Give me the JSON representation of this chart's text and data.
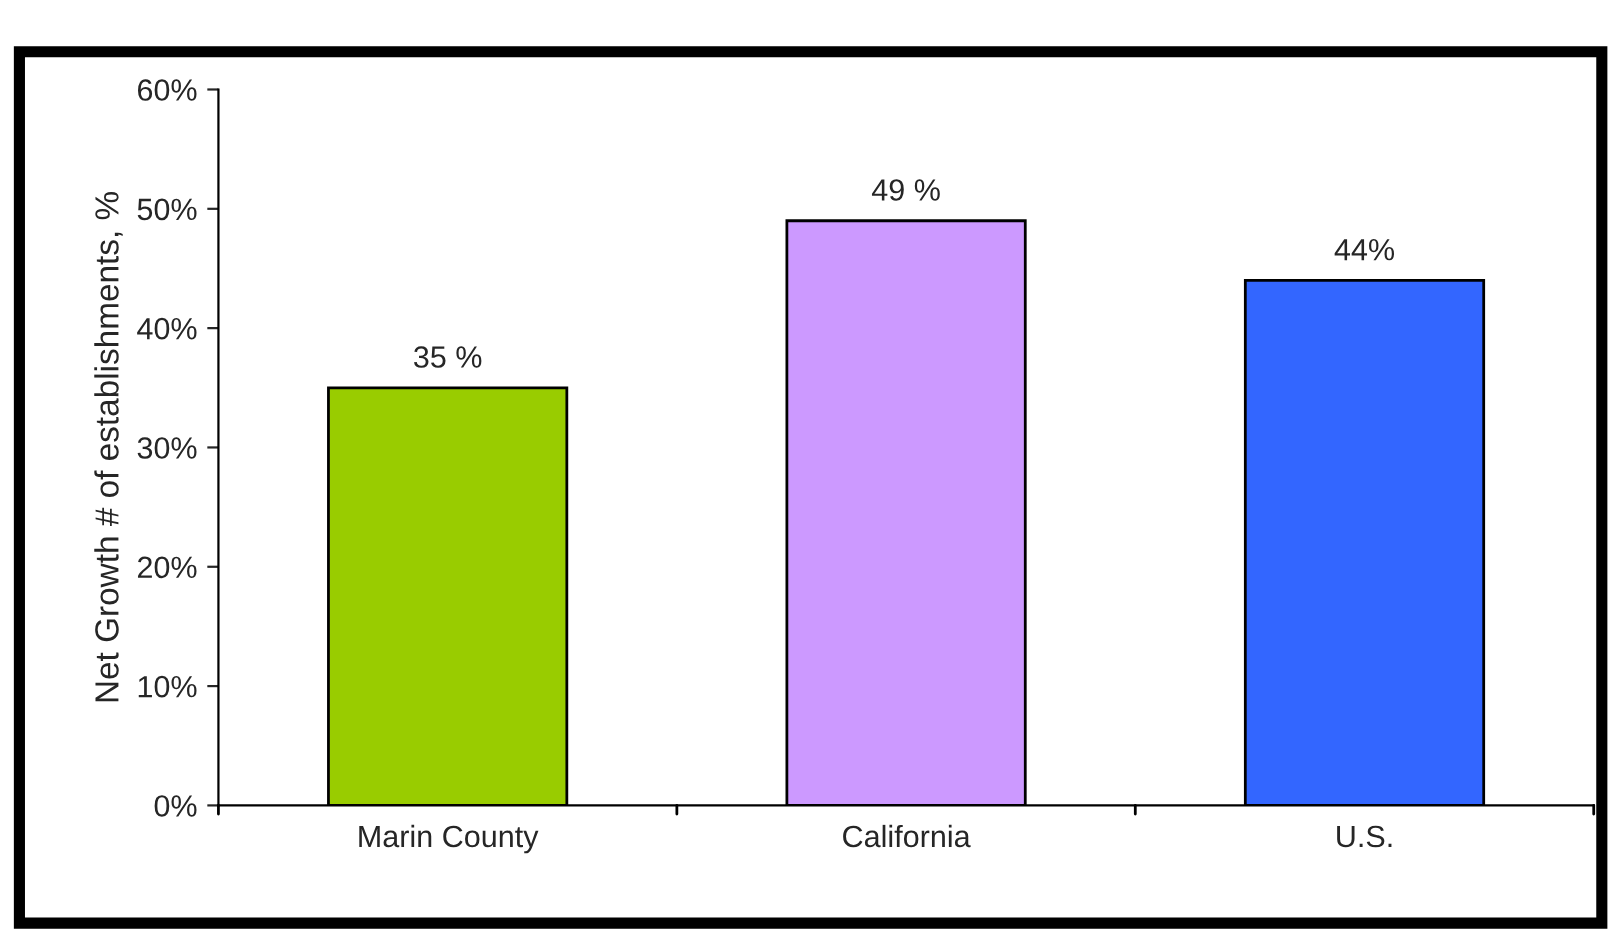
{
  "chart_data": {
    "type": "bar",
    "ylabel": "Net Growth # of establishments, %",
    "categories": [
      "Marin County",
      "California",
      "U.S."
    ],
    "values": [
      35,
      49,
      44
    ],
    "colors": [
      "#99cc00",
      "#cc99ff",
      "#3366ff"
    ],
    "value_labels": [
      "35 %",
      "49 %",
      "44%"
    ],
    "ylim": [
      0,
      60
    ],
    "yticks": [
      {
        "value": 0,
        "label": "0%"
      },
      {
        "value": 10,
        "label": "10%"
      },
      {
        "value": 20,
        "label": "20%"
      },
      {
        "value": 30,
        "label": "30%"
      },
      {
        "value": 40,
        "label": "40%"
      },
      {
        "value": 50,
        "label": "50%"
      },
      {
        "value": 60,
        "label": "60%"
      }
    ],
    "grid": false,
    "legend": false
  }
}
